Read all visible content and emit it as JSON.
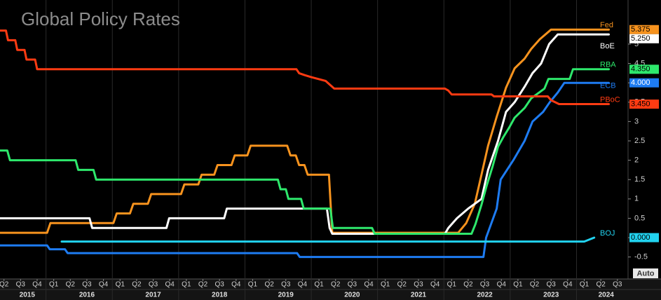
{
  "chart_data": {
    "type": "line",
    "title": "Global Policy Rates",
    "axis_mode": "Auto",
    "xlim": [
      2015.19,
      2024.65
    ],
    "ylim": [
      -0.76,
      6.14
    ],
    "yticks": [
      -0.5,
      0,
      0.5,
      1,
      1.5,
      2,
      2.5,
      3,
      3.5,
      4,
      4.5,
      5
    ],
    "xticks": [
      {
        "value": 2015.25,
        "label": "Q2"
      },
      {
        "value": 2015.5,
        "label": "Q3"
      },
      {
        "value": 2015.75,
        "label": "Q4"
      },
      {
        "value": 2016.0,
        "label": "Q1"
      },
      {
        "value": 2016.25,
        "label": "Q2"
      },
      {
        "value": 2016.5,
        "label": "Q3"
      },
      {
        "value": 2016.75,
        "label": "Q4"
      },
      {
        "value": 2017.0,
        "label": "Q1"
      },
      {
        "value": 2017.25,
        "label": "Q2"
      },
      {
        "value": 2017.5,
        "label": "Q3"
      },
      {
        "value": 2017.75,
        "label": "Q4"
      },
      {
        "value": 2018.0,
        "label": "Q1"
      },
      {
        "value": 2018.25,
        "label": "Q2"
      },
      {
        "value": 2018.5,
        "label": "Q3"
      },
      {
        "value": 2018.75,
        "label": "Q4"
      },
      {
        "value": 2019.0,
        "label": "Q1"
      },
      {
        "value": 2019.25,
        "label": "Q2"
      },
      {
        "value": 2019.5,
        "label": "Q3"
      },
      {
        "value": 2019.75,
        "label": "Q4"
      },
      {
        "value": 2020.0,
        "label": "Q1"
      },
      {
        "value": 2020.25,
        "label": "Q2"
      },
      {
        "value": 2020.5,
        "label": "Q3"
      },
      {
        "value": 2020.75,
        "label": "Q4"
      },
      {
        "value": 2021.0,
        "label": "Q1"
      },
      {
        "value": 2021.25,
        "label": "Q2"
      },
      {
        "value": 2021.5,
        "label": "Q3"
      },
      {
        "value": 2021.75,
        "label": "Q4"
      },
      {
        "value": 2022.0,
        "label": "Q1"
      },
      {
        "value": 2022.25,
        "label": "Q2"
      },
      {
        "value": 2022.5,
        "label": "Q3"
      },
      {
        "value": 2022.75,
        "label": "Q4"
      },
      {
        "value": 2023.0,
        "label": "Q1"
      },
      {
        "value": 2023.25,
        "label": "Q2"
      },
      {
        "value": 2023.5,
        "label": "Q3"
      },
      {
        "value": 2023.75,
        "label": "Q4"
      },
      {
        "value": 2024.0,
        "label": "Q1"
      },
      {
        "value": 2024.25,
        "label": "Q2"
      },
      {
        "value": 2024.5,
        "label": "Q3"
      }
    ],
    "year_labels": [
      {
        "value": 2015.6,
        "label": "2015"
      },
      {
        "value": 2016.5,
        "label": "2016"
      },
      {
        "value": 2017.5,
        "label": "2017"
      },
      {
        "value": 2018.5,
        "label": "2018"
      },
      {
        "value": 2019.5,
        "label": "2019"
      },
      {
        "value": 2020.5,
        "label": "2020"
      },
      {
        "value": 2021.5,
        "label": "2021"
      },
      {
        "value": 2022.5,
        "label": "2022"
      },
      {
        "value": 2023.5,
        "label": "2023"
      },
      {
        "value": 2024.33,
        "label": "2024"
      }
    ],
    "series": [
      {
        "name": "Fed",
        "color": "#f7931e",
        "end_label": "5.375",
        "x": [
          2015.19,
          2015.9,
          2015.95,
          2016.9,
          2016.95,
          2017.15,
          2017.2,
          2017.42,
          2017.47,
          2017.92,
          2017.97,
          2018.18,
          2018.23,
          2018.42,
          2018.47,
          2018.68,
          2018.73,
          2018.92,
          2018.97,
          2019.52,
          2019.57,
          2019.65,
          2019.7,
          2019.78,
          2019.83,
          2020.15,
          2020.2,
          2022.1,
          2022.22,
          2022.35,
          2022.45,
          2022.55,
          2022.68,
          2022.82,
          2022.95,
          2023.1,
          2023.2,
          2023.33,
          2023.5,
          2024.37
        ],
        "values": [
          0.125,
          0.125,
          0.375,
          0.375,
          0.625,
          0.625,
          0.875,
          0.875,
          1.125,
          1.125,
          1.375,
          1.375,
          1.625,
          1.625,
          1.875,
          1.875,
          2.125,
          2.125,
          2.375,
          2.375,
          2.125,
          2.125,
          1.875,
          1.875,
          1.625,
          1.625,
          0.125,
          0.125,
          0.375,
          0.875,
          1.625,
          2.375,
          3.125,
          3.875,
          4.375,
          4.625,
          4.875,
          5.125,
          5.375,
          5.375
        ]
      },
      {
        "name": "BoE",
        "color": "#ffffff",
        "end_label": "5.250",
        "x": [
          2015.19,
          2016.54,
          2016.58,
          2017.7,
          2017.74,
          2018.57,
          2018.61,
          2020.12,
          2020.16,
          2020.2,
          2021.9,
          2021.95,
          2022.08,
          2022.25,
          2022.45,
          2022.55,
          2022.7,
          2022.82,
          2022.95,
          2023.1,
          2023.22,
          2023.35,
          2023.47,
          2023.6,
          2024.37
        ],
        "values": [
          0.5,
          0.5,
          0.25,
          0.25,
          0.5,
          0.5,
          0.75,
          0.75,
          0.25,
          0.1,
          0.1,
          0.25,
          0.5,
          0.75,
          1.0,
          1.75,
          2.5,
          3.25,
          3.5,
          3.9,
          4.25,
          4.5,
          5.0,
          5.25,
          5.25
        ]
      },
      {
        "name": "RBA",
        "color": "#2ee86c",
        "end_label": "4.350",
        "x": [
          2015.19,
          2015.3,
          2015.34,
          2016.33,
          2016.37,
          2016.6,
          2016.64,
          2019.38,
          2019.42,
          2019.5,
          2019.54,
          2019.73,
          2019.77,
          2020.17,
          2020.21,
          2020.8,
          2020.84,
          2022.3,
          2022.36,
          2022.45,
          2022.53,
          2022.62,
          2022.7,
          2022.78,
          2022.87,
          2022.95,
          2023.1,
          2023.2,
          2023.4,
          2023.46,
          2023.78,
          2023.83,
          2024.37
        ],
        "values": [
          2.25,
          2.25,
          2.0,
          2.0,
          1.75,
          1.75,
          1.5,
          1.5,
          1.25,
          1.25,
          1.0,
          1.0,
          0.75,
          0.75,
          0.25,
          0.25,
          0.1,
          0.1,
          0.35,
          0.85,
          1.35,
          1.85,
          2.35,
          2.6,
          2.85,
          3.1,
          3.35,
          3.6,
          3.85,
          4.1,
          4.1,
          4.35,
          4.35
        ]
      },
      {
        "name": "ECB",
        "color": "#1e7cf2",
        "end_label": "4.000",
        "x": [
          2015.19,
          2015.9,
          2015.94,
          2016.17,
          2016.21,
          2019.67,
          2019.71,
          2022.48,
          2022.52,
          2022.68,
          2022.74,
          2022.93,
          2023.1,
          2023.22,
          2023.38,
          2023.48,
          2023.6,
          2023.7,
          2024.37
        ],
        "values": [
          -0.2,
          -0.2,
          -0.3,
          -0.3,
          -0.4,
          -0.4,
          -0.5,
          -0.5,
          0.0,
          0.75,
          1.5,
          2.0,
          2.5,
          3.0,
          3.25,
          3.5,
          3.75,
          4.0,
          4.0
        ]
      },
      {
        "name": "PBoC",
        "color": "#ff3b12",
        "end_label": "3.450",
        "x": [
          2015.19,
          2015.28,
          2015.31,
          2015.42,
          2015.45,
          2015.56,
          2015.59,
          2015.72,
          2015.75,
          2019.66,
          2019.7,
          2019.78,
          2019.88,
          2020.1,
          2020.23,
          2021.9,
          2021.95,
          2022.0,
          2022.6,
          2022.64,
          2023.45,
          2023.5,
          2023.62,
          2024.37
        ],
        "values": [
          5.35,
          5.35,
          5.1,
          5.1,
          4.85,
          4.85,
          4.6,
          4.6,
          4.35,
          4.35,
          4.25,
          4.2,
          4.15,
          4.05,
          3.85,
          3.85,
          3.8,
          3.7,
          3.7,
          3.65,
          3.65,
          3.55,
          3.45,
          3.45
        ]
      },
      {
        "name": "BOJ",
        "color": "#22d3f0",
        "end_label": "0.000",
        "x": [
          2016.12,
          2024.0,
          2024.15
        ],
        "values": [
          -0.1,
          -0.1,
          0.0
        ]
      }
    ]
  }
}
